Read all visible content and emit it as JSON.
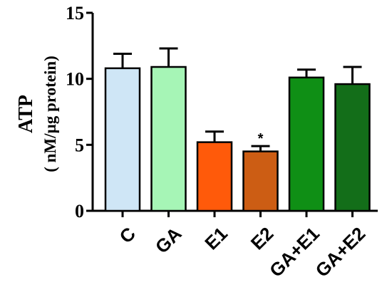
{
  "chart_data": {
    "type": "bar",
    "title": "",
    "xlabel": "",
    "ylabel": "ATP",
    "ylabel_unit": "( nM/µg protein)",
    "ylim": [
      0,
      15
    ],
    "yticks": [
      "0",
      "5",
      "10",
      "15"
    ],
    "categories": [
      "C",
      "GA",
      "E1",
      "E2",
      "GA+E1",
      "GA+E2"
    ],
    "values": [
      10.8,
      10.9,
      5.2,
      4.5,
      10.1,
      9.6
    ],
    "errors": [
      1.1,
      1.4,
      0.8,
      0.4,
      0.6,
      1.3
    ],
    "colors": [
      "#cfe6f6",
      "#a6f5b6",
      "#ff5a0a",
      "#cc5d14",
      "#0f8f15",
      "#136e19"
    ],
    "annotations": [
      "",
      "",
      "",
      "*",
      "",
      ""
    ],
    "grid": false,
    "legend": "none"
  }
}
